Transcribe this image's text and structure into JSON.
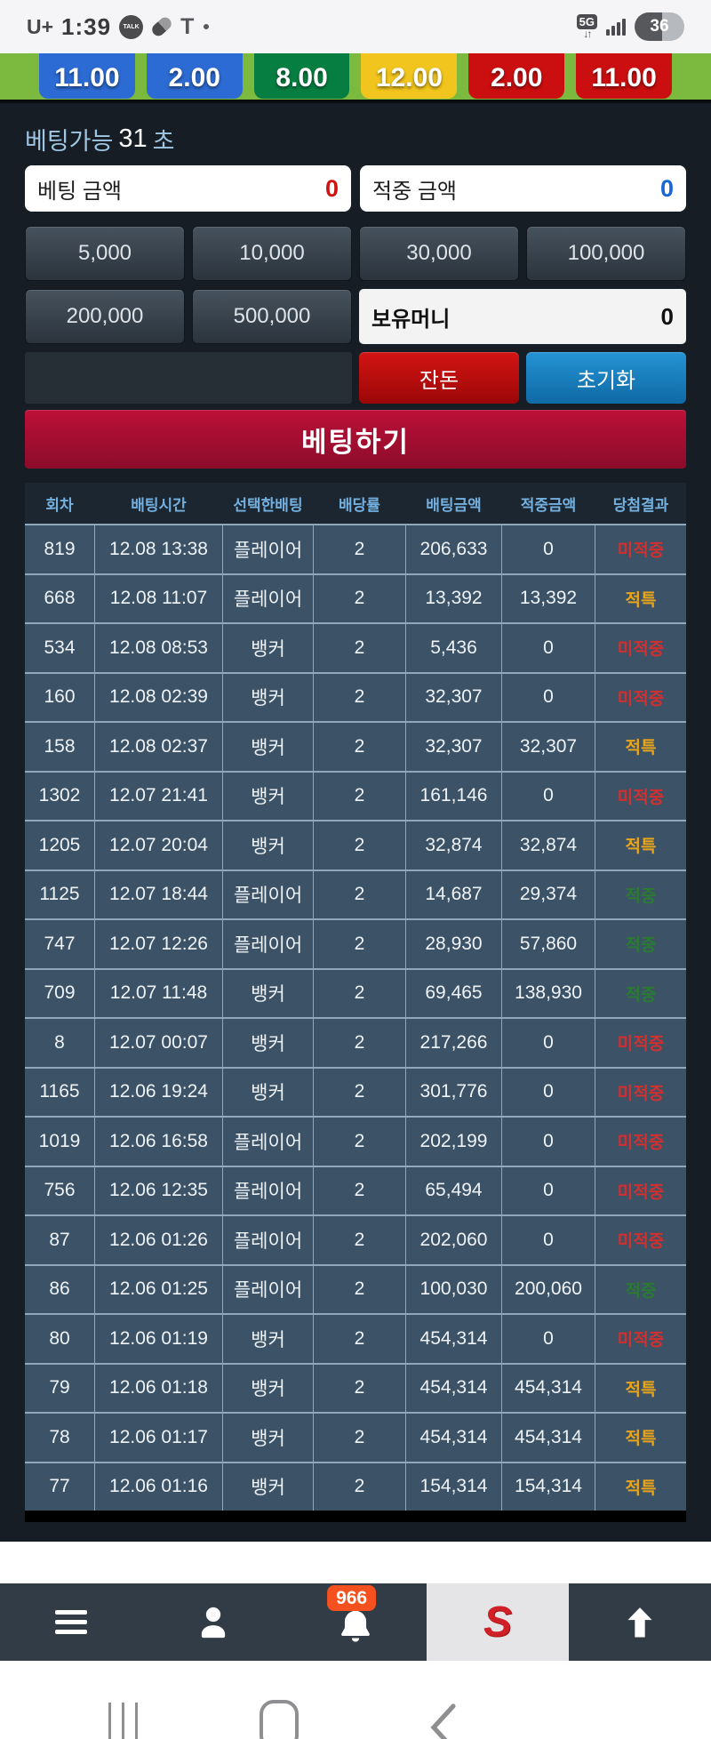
{
  "status_bar": {
    "carrier": "U+",
    "time": "1:39",
    "network_badge": "5G",
    "network_arrows": "↓↑",
    "battery_percent": "36",
    "talk_icon_text": "TALK",
    "t_icon_text": "T"
  },
  "odds": {
    "boxes": [
      {
        "value": "11.00",
        "color": "#2c6bd3"
      },
      {
        "value": "2.00",
        "color": "#2c6bd3"
      },
      {
        "value": "8.00",
        "color": "#077e41"
      },
      {
        "value": "12.00",
        "color": "#f1c51d"
      },
      {
        "value": "2.00",
        "color": "#cb0f10"
      },
      {
        "value": "11.00",
        "color": "#cb0f10"
      }
    ]
  },
  "betting": {
    "countdown_label": "베팅가능",
    "countdown_value": "31",
    "countdown_unit": "초",
    "bet_amount_label": "베팅 금액",
    "bet_amount_value": "0",
    "win_amount_label": "적중 금액",
    "win_amount_value": "0",
    "chips": [
      "5,000",
      "10,000",
      "30,000",
      "100,000",
      "200,000",
      "500,000"
    ],
    "balance_label": "보유머니",
    "balance_value": "0",
    "change_button": "잔돈",
    "reset_button": "초기화",
    "bet_button": "베팅하기"
  },
  "table": {
    "headers": [
      "회차",
      "배팅시간",
      "선택한배팅",
      "배당률",
      "배팅금액",
      "적중금액",
      "당첨결과"
    ],
    "rows": [
      [
        "819",
        "12.08 13:38",
        "플레이어",
        "2",
        "206,633",
        "0",
        "미적중"
      ],
      [
        "668",
        "12.08 11:07",
        "플레이어",
        "2",
        "13,392",
        "13,392",
        "적특"
      ],
      [
        "534",
        "12.08 08:53",
        "뱅커",
        "2",
        "5,436",
        "0",
        "미적중"
      ],
      [
        "160",
        "12.08 02:39",
        "뱅커",
        "2",
        "32,307",
        "0",
        "미적중"
      ],
      [
        "158",
        "12.08 02:37",
        "뱅커",
        "2",
        "32,307",
        "32,307",
        "적특"
      ],
      [
        "1302",
        "12.07 21:41",
        "뱅커",
        "2",
        "161,146",
        "0",
        "미적중"
      ],
      [
        "1205",
        "12.07 20:04",
        "뱅커",
        "2",
        "32,874",
        "32,874",
        "적특"
      ],
      [
        "1125",
        "12.07 18:44",
        "플레이어",
        "2",
        "14,687",
        "29,374",
        "적중"
      ],
      [
        "747",
        "12.07 12:26",
        "플레이어",
        "2",
        "28,930",
        "57,860",
        "적중"
      ],
      [
        "709",
        "12.07 11:48",
        "뱅커",
        "2",
        "69,465",
        "138,930",
        "적중"
      ],
      [
        "8",
        "12.07 00:07",
        "뱅커",
        "2",
        "217,266",
        "0",
        "미적중"
      ],
      [
        "1165",
        "12.06 19:24",
        "뱅커",
        "2",
        "301,776",
        "0",
        "미적중"
      ],
      [
        "1019",
        "12.06 16:58",
        "플레이어",
        "2",
        "202,199",
        "0",
        "미적중"
      ],
      [
        "756",
        "12.06 12:35",
        "플레이어",
        "2",
        "65,494",
        "0",
        "미적중"
      ],
      [
        "87",
        "12.06 01:26",
        "플레이어",
        "2",
        "202,060",
        "0",
        "미적중"
      ],
      [
        "86",
        "12.06 01:25",
        "플레이어",
        "2",
        "100,030",
        "200,060",
        "적중"
      ],
      [
        "80",
        "12.06 01:19",
        "뱅커",
        "2",
        "454,314",
        "0",
        "미적중"
      ],
      [
        "79",
        "12.06 01:18",
        "뱅커",
        "2",
        "454,314",
        "454,314",
        "적특"
      ],
      [
        "78",
        "12.06 01:17",
        "뱅커",
        "2",
        "454,314",
        "454,314",
        "적특"
      ],
      [
        "77",
        "12.06 01:16",
        "뱅커",
        "2",
        "154,314",
        "154,314",
        "적특"
      ]
    ],
    "result_colors": {
      "미적중": "#d32f2f",
      "적특": "#e9a519",
      "적중": "#2b7a33"
    }
  },
  "bottom_nav": {
    "notification_count": "966",
    "logo_letter": "S"
  }
}
